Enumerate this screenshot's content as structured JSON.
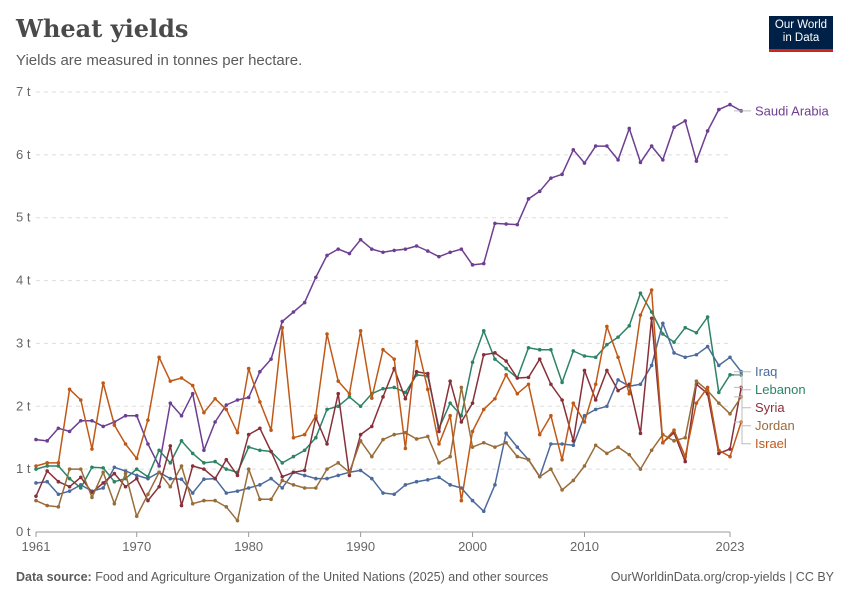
{
  "title": "Wheat yields",
  "subtitle": "Yields are measured in tonnes per hectare.",
  "logo": {
    "line1": "Our World",
    "line2": "in Data"
  },
  "footer": {
    "source_label": "Data source:",
    "source_text": "Food and Agriculture Organization of the United Nations (2025) and other sources",
    "link": "OurWorldinData.org/crop-yields | CC BY"
  },
  "chart_data": {
    "type": "line",
    "title": "Wheat yields",
    "xlabel": "",
    "ylabel": "tonnes per hectare",
    "xlim": [
      1961,
      2023
    ],
    "ylim": [
      0,
      7
    ],
    "y_ticks": [
      0,
      1,
      2,
      3,
      4,
      5,
      6,
      7
    ],
    "y_tick_labels": [
      "0 t",
      "1 t",
      "2 t",
      "3 t",
      "4 t",
      "5 t",
      "6 t",
      "7 t"
    ],
    "x_ticks": [
      1961,
      1970,
      1980,
      1990,
      2000,
      2010,
      2023
    ],
    "x_tick_labels": [
      "1961",
      "1970",
      "1980",
      "1990",
      "2000",
      "2010",
      "2023"
    ],
    "x_start": 1961,
    "series": [
      {
        "name": "Saudi Arabia",
        "color": "#6d3e91",
        "values": [
          1.47,
          1.45,
          1.65,
          1.6,
          1.77,
          1.77,
          1.68,
          1.75,
          1.85,
          1.85,
          1.4,
          1.05,
          2.05,
          1.85,
          2.2,
          1.3,
          1.75,
          2.02,
          2.1,
          2.14,
          2.55,
          2.75,
          3.35,
          3.5,
          3.65,
          4.05,
          4.4,
          4.5,
          4.43,
          4.65,
          4.5,
          4.45,
          4.48,
          4.5,
          4.55,
          4.47,
          4.38,
          4.45,
          4.5,
          4.25,
          4.27,
          4.91,
          4.9,
          4.89,
          5.3,
          5.42,
          5.63,
          5.69,
          6.08,
          5.87,
          6.14,
          6.14,
          5.92,
          6.42,
          5.88,
          6.14,
          5.92,
          6.44,
          6.54,
          5.9,
          6.38,
          6.72,
          6.8,
          6.7
        ]
      },
      {
        "name": "Iraq",
        "color": "#4c6a9c",
        "values": [
          0.78,
          0.8,
          0.6,
          0.65,
          0.75,
          0.65,
          0.7,
          1.03,
          0.97,
          0.9,
          0.85,
          0.95,
          0.85,
          0.84,
          0.62,
          0.84,
          0.85,
          0.62,
          0.65,
          0.7,
          0.75,
          0.85,
          0.7,
          0.95,
          0.9,
          0.85,
          0.85,
          0.9,
          0.95,
          0.98,
          0.85,
          0.62,
          0.6,
          0.75,
          0.8,
          0.83,
          0.87,
          0.75,
          0.7,
          0.5,
          0.33,
          0.75,
          1.57,
          1.35,
          1.15,
          0.88,
          1.4,
          1.4,
          1.38,
          1.85,
          1.95,
          2.0,
          2.42,
          2.32,
          2.35,
          2.65,
          3.32,
          2.85,
          2.78,
          2.82,
          2.95,
          2.65,
          2.78,
          2.55
        ]
      },
      {
        "name": "Lebanon",
        "color": "#2c8465",
        "values": [
          1.0,
          1.05,
          1.05,
          0.85,
          0.7,
          1.03,
          1.02,
          0.8,
          0.85,
          1.0,
          0.88,
          1.3,
          1.1,
          1.45,
          1.25,
          1.1,
          1.12,
          1.0,
          0.95,
          1.35,
          1.3,
          1.28,
          1.1,
          1.2,
          1.3,
          1.5,
          1.95,
          2.0,
          2.15,
          2.0,
          2.2,
          2.28,
          2.3,
          2.22,
          2.5,
          2.48,
          1.65,
          2.05,
          1.85,
          2.7,
          3.2,
          2.75,
          2.6,
          2.45,
          2.93,
          2.9,
          2.9,
          2.38,
          2.88,
          2.8,
          2.78,
          2.98,
          3.1,
          3.28,
          3.8,
          3.5,
          3.15,
          3.02,
          3.25,
          3.17,
          3.42,
          2.22,
          2.5,
          2.5
        ]
      },
      {
        "name": "Syria",
        "color": "#883039",
        "values": [
          0.57,
          0.97,
          0.8,
          0.72,
          0.87,
          0.63,
          0.78,
          0.93,
          0.72,
          0.85,
          0.5,
          0.72,
          1.37,
          0.42,
          1.05,
          1.0,
          0.85,
          1.15,
          0.9,
          1.55,
          1.65,
          1.28,
          0.88,
          0.95,
          0.98,
          1.82,
          1.4,
          2.2,
          0.9,
          1.55,
          1.68,
          2.15,
          2.6,
          2.12,
          2.55,
          2.52,
          1.6,
          2.4,
          1.75,
          2.05,
          2.82,
          2.85,
          2.72,
          2.45,
          2.46,
          2.75,
          2.35,
          2.1,
          1.45,
          2.57,
          2.1,
          2.57,
          2.25,
          2.35,
          1.57,
          3.4,
          1.42,
          1.58,
          1.12,
          2.35,
          2.2,
          1.25,
          1.32,
          2.3
        ]
      },
      {
        "name": "Jordan",
        "color": "#996d39",
        "values": [
          0.5,
          0.42,
          0.4,
          1.0,
          1.0,
          0.55,
          0.95,
          0.45,
          0.93,
          0.25,
          0.6,
          0.95,
          0.72,
          1.05,
          0.45,
          0.5,
          0.5,
          0.4,
          0.18,
          1.0,
          0.52,
          0.52,
          0.82,
          0.75,
          0.7,
          0.7,
          1.0,
          1.1,
          0.95,
          1.45,
          1.2,
          1.47,
          1.55,
          1.58,
          1.48,
          1.52,
          1.1,
          1.2,
          2.3,
          1.35,
          1.42,
          1.35,
          1.42,
          1.2,
          1.15,
          0.88,
          1.0,
          0.67,
          0.82,
          1.05,
          1.38,
          1.25,
          1.35,
          1.23,
          1.0,
          1.3,
          1.55,
          1.45,
          1.5,
          2.4,
          2.25,
          2.05,
          1.88,
          2.15
        ]
      },
      {
        "name": "Israel",
        "color": "#c05917",
        "values": [
          1.05,
          1.1,
          1.1,
          2.27,
          2.1,
          1.32,
          2.37,
          1.7,
          1.4,
          1.17,
          1.78,
          2.78,
          2.4,
          2.45,
          2.33,
          1.9,
          2.12,
          1.95,
          1.58,
          2.6,
          2.07,
          1.62,
          3.25,
          1.5,
          1.55,
          1.85,
          3.15,
          2.4,
          2.2,
          3.2,
          2.13,
          2.9,
          2.75,
          1.33,
          3.03,
          2.27,
          1.4,
          1.85,
          0.5,
          1.6,
          1.95,
          2.12,
          2.5,
          2.2,
          2.35,
          1.55,
          1.85,
          1.15,
          2.05,
          1.75,
          2.35,
          3.27,
          2.78,
          2.2,
          3.45,
          3.85,
          1.42,
          1.62,
          1.2,
          2.05,
          2.3,
          1.3,
          1.2,
          1.75
        ]
      }
    ]
  }
}
